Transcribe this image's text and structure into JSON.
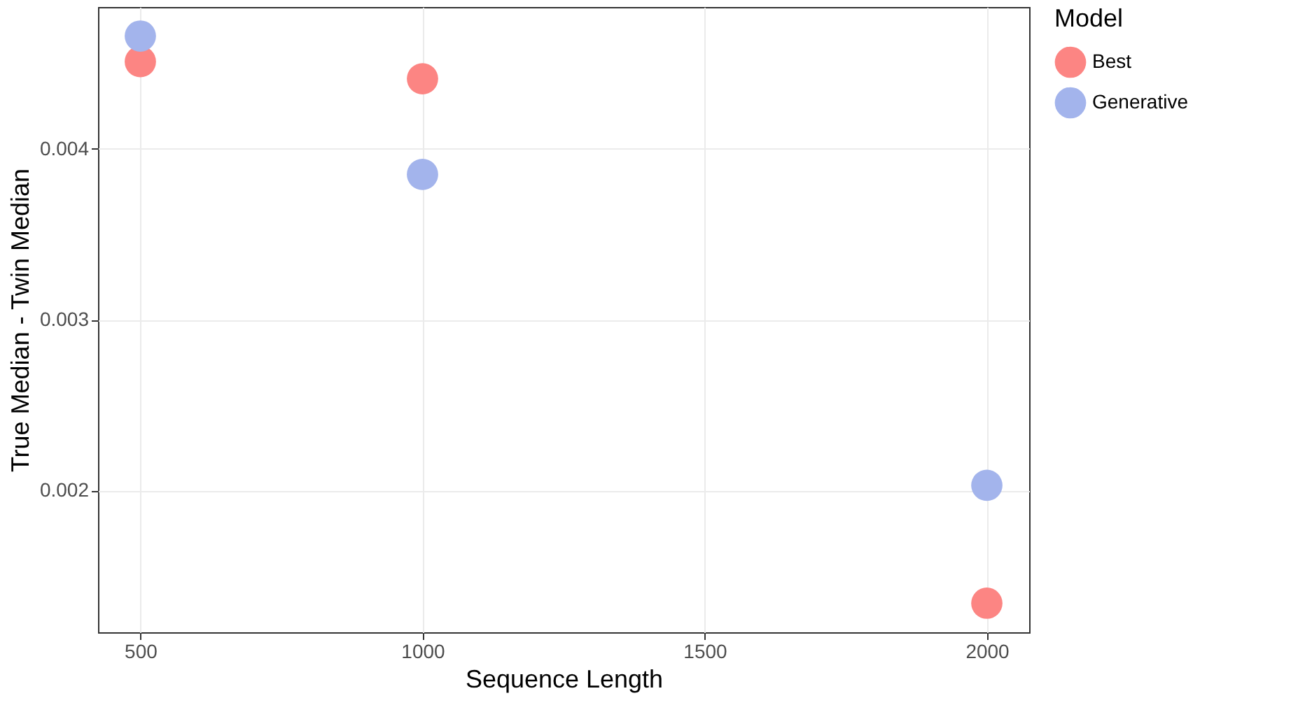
{
  "chart_data": {
    "type": "scatter",
    "xlabel": "Sequence Length",
    "ylabel": "True Median - Twin Median",
    "legend_title": "Model",
    "x": [
      500,
      1000,
      2000
    ],
    "series": [
      {
        "name": "Best",
        "color": "#fc8583",
        "values": [
          0.00451,
          0.00441,
          0.00134
        ]
      },
      {
        "name": "Generative",
        "color": "#a3b4ec",
        "values": [
          0.00466,
          0.00385,
          0.00203
        ]
      }
    ],
    "xlim": [
      425,
      2075
    ],
    "xticks": [
      500,
      1000,
      1500,
      2000
    ],
    "ylim": [
      0.00117,
      0.00483
    ],
    "yticks": [
      0.002,
      0.003,
      0.004
    ],
    "grid": true,
    "legend": "right"
  }
}
